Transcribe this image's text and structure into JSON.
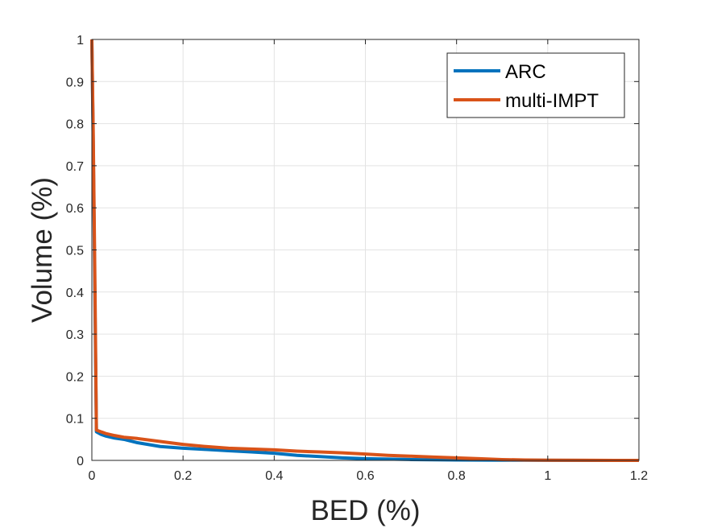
{
  "chart_data": {
    "type": "line",
    "title": "",
    "xlabel": "BED (%)",
    "ylabel": "Volume (%)",
    "xlim": [
      0,
      1.2
    ],
    "ylim": [
      0,
      1
    ],
    "xticks": [
      0,
      0.2,
      0.4,
      0.6,
      0.8,
      1,
      1.2
    ],
    "xtick_labels": [
      "0",
      "0.2",
      "0.4",
      "0.6",
      "0.8",
      "1",
      "1.2"
    ],
    "yticks": [
      0,
      0.1,
      0.2,
      0.3,
      0.4,
      0.5,
      0.6,
      0.7,
      0.8,
      0.9,
      1
    ],
    "ytick_labels": [
      "0",
      "0.1",
      "0.2",
      "0.3",
      "0.4",
      "0.5",
      "0.6",
      "0.7",
      "0.8",
      "0.9",
      "1"
    ],
    "grid": true,
    "legend_position": "top-right",
    "series": [
      {
        "name": "ARC",
        "color": "#0072BD",
        "x": [
          0,
          0.003,
          0.007,
          0.01,
          0.02,
          0.03,
          0.05,
          0.07,
          0.1,
          0.15,
          0.2,
          0.25,
          0.3,
          0.35,
          0.4,
          0.45,
          0.5,
          0.55,
          0.6,
          0.65,
          0.7,
          0.8,
          0.9,
          1.0,
          1.1,
          1.2
        ],
        "y": [
          1.0,
          0.75,
          0.35,
          0.068,
          0.062,
          0.058,
          0.053,
          0.05,
          0.042,
          0.033,
          0.029,
          0.026,
          0.023,
          0.02,
          0.017,
          0.012,
          0.009,
          0.006,
          0.004,
          0.003,
          0.002,
          0.001,
          0.0005,
          0.0002,
          0.0001,
          0.0
        ]
      },
      {
        "name": "multi-IMPT",
        "color": "#D95319",
        "x": [
          0,
          0.003,
          0.007,
          0.01,
          0.02,
          0.03,
          0.05,
          0.07,
          0.1,
          0.15,
          0.2,
          0.25,
          0.3,
          0.35,
          0.4,
          0.45,
          0.5,
          0.55,
          0.6,
          0.65,
          0.7,
          0.75,
          0.8,
          0.85,
          0.9,
          0.95,
          1.0,
          1.1,
          1.2
        ],
        "y": [
          1.0,
          0.78,
          0.4,
          0.072,
          0.068,
          0.064,
          0.059,
          0.055,
          0.052,
          0.045,
          0.038,
          0.033,
          0.029,
          0.027,
          0.025,
          0.022,
          0.02,
          0.018,
          0.015,
          0.012,
          0.01,
          0.008,
          0.006,
          0.004,
          0.002,
          0.001,
          0.0005,
          0.0002,
          0.0
        ]
      }
    ]
  }
}
